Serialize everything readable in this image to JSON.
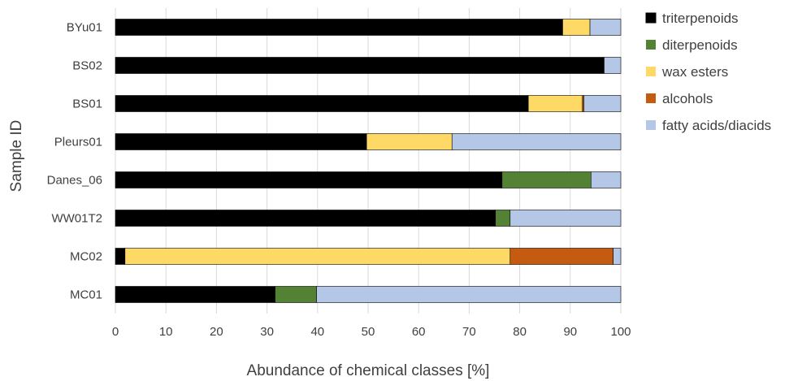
{
  "chart_data": {
    "type": "bar",
    "orientation": "horizontal",
    "stacked": true,
    "title": "",
    "xlabel": "Abundance of chemical classes [%]",
    "ylabel": "Sample ID",
    "xlim": [
      0,
      100
    ],
    "xticks": [
      0,
      10,
      20,
      30,
      40,
      50,
      60,
      70,
      80,
      90,
      100
    ],
    "grid": "vertical",
    "legend_position": "right",
    "categories": [
      "BYu01",
      "BS02",
      "BS01",
      "Pleurs01",
      "Danes_06",
      "WW01T2",
      "MC02",
      "MC01"
    ],
    "series": [
      {
        "name": "triterpenoids",
        "color": "#000000",
        "values": [
          88.5,
          96.7,
          81.7,
          49.7,
          76.5,
          75.2,
          1.9,
          31.6
        ]
      },
      {
        "name": "diterpenoids",
        "color": "#548235",
        "values": [
          0,
          0,
          0,
          0,
          17.6,
          2.9,
          0,
          8.2
        ]
      },
      {
        "name": "wax esters",
        "color": "#ffd966",
        "values": [
          5.4,
          0,
          10.7,
          16.9,
          0,
          0,
          76.2,
          0
        ]
      },
      {
        "name": "alcohols",
        "color": "#c55a11",
        "values": [
          0,
          0,
          0.3,
          0,
          0,
          0,
          20.4,
          0
        ]
      },
      {
        "name": "fatty acids/diacids",
        "color": "#b4c7e7",
        "values": [
          6.1,
          3.3,
          7.3,
          33.4,
          5.9,
          21.9,
          1.5,
          60.2
        ]
      }
    ]
  }
}
